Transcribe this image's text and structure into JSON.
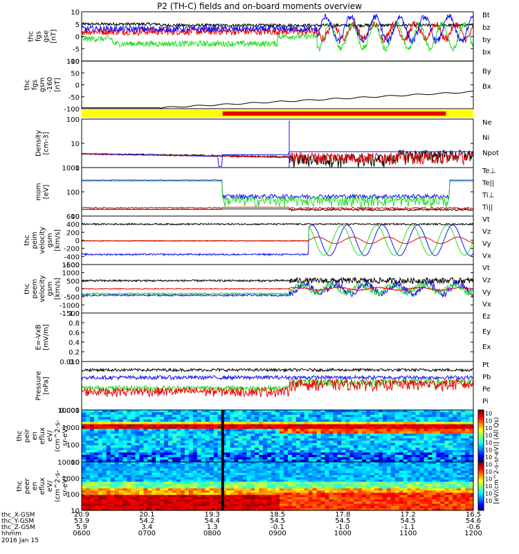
{
  "title": "P2 (TH-C) fields and on-board moments overview",
  "colors": {
    "black": "#000000",
    "red": "#ee0000",
    "green": "#22dd22",
    "blue": "#1111ee",
    "yellow": "#ffff00"
  },
  "chart_data": [
    {
      "type": "line",
      "panel": "fgs",
      "ylabel": [
        "thc",
        "fgs",
        "gse",
        "[nT]"
      ],
      "ylim": [
        -10,
        10
      ],
      "yticks": [
        "10",
        "5",
        "0",
        "-5",
        "-10"
      ],
      "series": [
        {
          "name": "Bt",
          "color": "#000000"
        },
        {
          "name": "bz",
          "color": "#ee0000"
        },
        {
          "name": "by",
          "color": "#22dd22"
        },
        {
          "name": "bx",
          "color": "#1111ee"
        }
      ]
    },
    {
      "type": "line",
      "panel": "fgs_gsm",
      "ylabel": [
        "thc",
        "fgs",
        "gsm",
        "-160",
        "[nT]"
      ],
      "ylim": [
        -130,
        110
      ],
      "yticks": [
        "100",
        "50",
        "0",
        "-50",
        "-100"
      ],
      "series": [
        {
          "name": "By",
          "color": "#22dd22"
        },
        {
          "name": "Bx",
          "color": "#000000"
        }
      ]
    },
    {
      "type": "bar",
      "panel": "mode_bar",
      "segments": [
        {
          "from": "0600",
          "to": "0815",
          "color": "#ffff00"
        },
        {
          "from": "0815",
          "to": "1200",
          "color": "#ee0000"
        }
      ]
    },
    {
      "type": "line",
      "panel": "density",
      "ylabel": [
        "Density",
        "[cm-3]"
      ],
      "log": true,
      "ylim": [
        0.7,
        200
      ],
      "yticks": [
        "100",
        "10",
        "1"
      ],
      "series": [
        {
          "name": "Ne",
          "color": "#ee0000"
        },
        {
          "name": "Ni",
          "color": "#000000"
        },
        {
          "name": "Npot",
          "color": "#1111ee"
        }
      ]
    },
    {
      "type": "line",
      "panel": "temperature",
      "ylabel": [
        "mom",
        "[eV]"
      ],
      "log": true,
      "ylim": [
        8,
        4000
      ],
      "yticks": [
        "1000",
        "100",
        "10"
      ],
      "series": [
        {
          "name": "Te⊥",
          "color": "#ee0000"
        },
        {
          "name": "Te||",
          "color": "#000000"
        },
        {
          "name": "Ti⊥",
          "color": "#1111ee"
        },
        {
          "name": "Ti||",
          "color": "#22dd22"
        }
      ]
    },
    {
      "type": "line",
      "panel": "peim_velocity",
      "ylabel": [
        "thc",
        "peim",
        "velocity",
        "gsm",
        "[km/s]"
      ],
      "ylim": [
        -600,
        600
      ],
      "yticks": [
        "600",
        "400",
        "200",
        "0",
        "-200",
        "-400",
        "-600"
      ],
      "series": [
        {
          "name": "Vt",
          "color": "#000000"
        },
        {
          "name": "Vz",
          "color": "#ee0000"
        },
        {
          "name": "Vy",
          "color": "#22dd22"
        },
        {
          "name": "Vx",
          "color": "#1111ee"
        }
      ]
    },
    {
      "type": "line",
      "panel": "peem_velocity",
      "ylabel": [
        "thc",
        "peem",
        "velocity",
        "gsm",
        "[km/s]"
      ],
      "ylim": [
        -1500,
        1500
      ],
      "yticks": [
        "1500",
        "1000",
        "500",
        "0",
        "-500",
        "-1000",
        "-1500"
      ],
      "series": [
        {
          "name": "Vt",
          "color": "#000000"
        },
        {
          "name": "Vz",
          "color": "#ee0000"
        },
        {
          "name": "Vy",
          "color": "#22dd22"
        },
        {
          "name": "Vx",
          "color": "#1111ee"
        }
      ]
    },
    {
      "type": "line",
      "panel": "efield",
      "ylabel": [
        "E=-VxB",
        "[mV/m]"
      ],
      "ylim": [
        0,
        1
      ],
      "yticks": [
        "1.0",
        "0.8",
        "0.6",
        "0.4",
        "0.2",
        "0.0"
      ],
      "series": [
        {
          "name": "Ez",
          "color": "#ee0000"
        },
        {
          "name": "Ey",
          "color": "#22dd22"
        },
        {
          "name": "Ex",
          "color": "#1111ee"
        }
      ]
    },
    {
      "type": "line",
      "panel": "pressure",
      "ylabel": [
        "Pressure",
        "[nPa]"
      ],
      "log": true,
      "ylim": [
        0.001,
        0.1
      ],
      "yticks": [
        "0.010",
        "0.001"
      ],
      "series": [
        {
          "name": "Pt",
          "color": "#000000"
        },
        {
          "name": "Pb",
          "color": "#ee0000"
        },
        {
          "name": "Pe",
          "color": "#22dd22"
        },
        {
          "name": "Pi",
          "color": "#1111ee"
        }
      ]
    },
    {
      "type": "heatmap",
      "panel": "peir_spectrogram",
      "ylabel": [
        "thc",
        "peir",
        "en",
        "eflux",
        "eV/",
        "(cm^2-s-",
        "sr-eV)"
      ],
      "log": true,
      "yticks": [
        "10000",
        "1000",
        "100",
        "10"
      ]
    },
    {
      "type": "heatmap",
      "panel": "peer_spectrogram",
      "ylabel": [
        "thc",
        "peer",
        "en",
        "eflux",
        "eV/",
        "(cm^2-s-",
        "sr-eV)"
      ],
      "log": true,
      "yticks": [
        "10000",
        "1000",
        "100",
        "10"
      ]
    },
    {
      "type": "colorbar",
      "label": "[eV/(cm^2-s-sr-eV)] (All Qs)",
      "ticks": [
        "10^7",
        "10^6",
        "10^5",
        "10^4",
        "10^3",
        "10^2",
        "10^8",
        "10^7",
        "10^6",
        "10^5",
        "10^4",
        "10^3",
        "10^2"
      ]
    }
  ],
  "xaxis": {
    "row_labels": [
      "thc_X-GSM",
      "thc_Y-GSM",
      "thc_Z-GSM",
      "hhmm",
      "2016 Jan 15"
    ],
    "columns": [
      {
        "x": "20.9",
        "y": "53.9",
        "z": "5.9",
        "t": "0600"
      },
      {
        "x": "20.1",
        "y": "54.2",
        "z": "3.4",
        "t": "0700"
      },
      {
        "x": "19.3",
        "y": "54.4",
        "z": "1.3",
        "t": "0800"
      },
      {
        "x": "18.5",
        "y": "54.5",
        "z": "-0.1",
        "t": "0900"
      },
      {
        "x": "17.8",
        "y": "54.5",
        "z": "-1.0",
        "t": "1000"
      },
      {
        "x": "17.2",
        "y": "54.5",
        "z": "-1.1",
        "t": "1100"
      },
      {
        "x": "16.5",
        "y": "54.6",
        "z": "-0.6",
        "t": "1200"
      }
    ]
  }
}
